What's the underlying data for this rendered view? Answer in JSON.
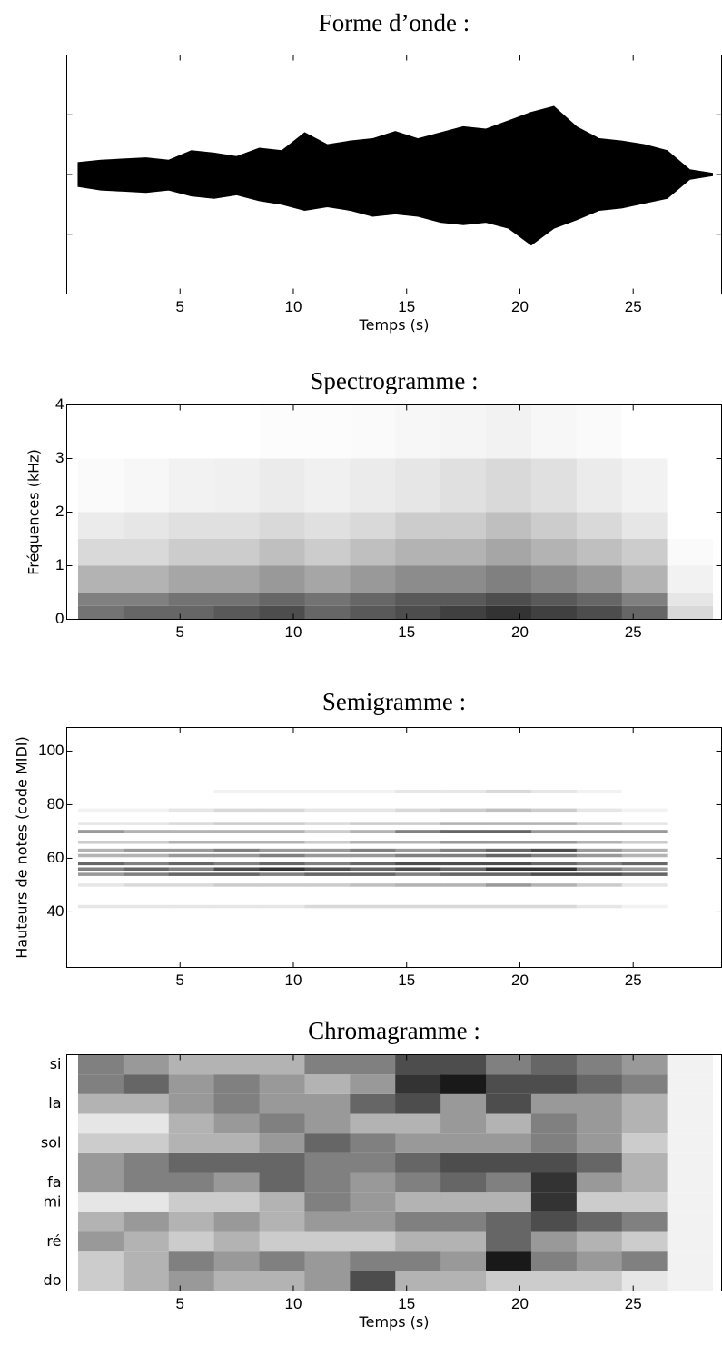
{
  "chart_data": [
    {
      "type": "area",
      "title": "Forme d’onde :",
      "x_label": "Temps (s)",
      "color": "#000000",
      "x": [
        0.5,
        1.5,
        2.5,
        3.5,
        4.5,
        5.5,
        6.5,
        7.5,
        8.5,
        9.5,
        10.5,
        11.5,
        12.5,
        13.5,
        14.5,
        15.5,
        16.5,
        17.5,
        18.5,
        19.5,
        20.5,
        21.5,
        22.5,
        23.5,
        24.5,
        25.5,
        26.5,
        27.5,
        28.5
      ],
      "upper": [
        0.1,
        0.12,
        0.13,
        0.14,
        0.12,
        0.2,
        0.18,
        0.15,
        0.22,
        0.2,
        0.35,
        0.25,
        0.28,
        0.3,
        0.36,
        0.3,
        0.35,
        0.4,
        0.38,
        0.45,
        0.52,
        0.57,
        0.4,
        0.3,
        0.28,
        0.25,
        0.2,
        0.04,
        0.01
      ],
      "lower": [
        -0.1,
        -0.13,
        -0.14,
        -0.15,
        -0.13,
        -0.18,
        -0.2,
        -0.17,
        -0.22,
        -0.25,
        -0.3,
        -0.27,
        -0.3,
        -0.35,
        -0.33,
        -0.35,
        -0.4,
        -0.42,
        -0.4,
        -0.45,
        -0.59,
        -0.45,
        -0.38,
        -0.3,
        -0.28,
        -0.24,
        -0.2,
        -0.04,
        -0.01
      ],
      "xlim": [
        0,
        28.9
      ],
      "xticks": [
        5,
        10,
        15,
        20,
        25
      ],
      "ylim": [
        -1,
        1
      ],
      "yticks": [
        -0.5,
        0,
        0.5
      ],
      "ytick_labels": false
    },
    {
      "type": "heatmap",
      "title": "Spectrogramme :",
      "y_label": "Fréquences (kHz)",
      "colormap": "gray_r",
      "x_bins": [
        0.5,
        2.5,
        4.5,
        6.5,
        8.5,
        10.5,
        12.5,
        14.5,
        16.5,
        18.5,
        20.5,
        22.5,
        24.5,
        26.5,
        28.5
      ],
      "y_bins": [
        0,
        0.25,
        0.5,
        1,
        1.5,
        2,
        3,
        4
      ],
      "z": [
        [
          0.55,
          0.6,
          0.6,
          0.65,
          0.7,
          0.6,
          0.65,
          0.7,
          0.75,
          0.8,
          0.75,
          0.7,
          0.6,
          0.15
        ],
        [
          0.5,
          0.5,
          0.55,
          0.55,
          0.6,
          0.55,
          0.6,
          0.65,
          0.65,
          0.7,
          0.65,
          0.6,
          0.5,
          0.1
        ],
        [
          0.3,
          0.3,
          0.35,
          0.35,
          0.4,
          0.35,
          0.4,
          0.45,
          0.45,
          0.5,
          0.45,
          0.4,
          0.3,
          0.05
        ],
        [
          0.15,
          0.15,
          0.2,
          0.2,
          0.25,
          0.2,
          0.25,
          0.3,
          0.3,
          0.35,
          0.3,
          0.25,
          0.2,
          0.02
        ],
        [
          0.08,
          0.1,
          0.12,
          0.12,
          0.15,
          0.12,
          0.15,
          0.2,
          0.2,
          0.25,
          0.2,
          0.15,
          0.1,
          0
        ],
        [
          0.02,
          0.03,
          0.05,
          0.06,
          0.08,
          0.06,
          0.08,
          0.1,
          0.12,
          0.15,
          0.12,
          0.08,
          0.05,
          0
        ],
        [
          0,
          0,
          0,
          0,
          0.01,
          0.01,
          0.02,
          0.03,
          0.04,
          0.05,
          0.03,
          0.02,
          0,
          0
        ]
      ],
      "xlim": [
        0,
        28.9
      ],
      "xticks": [
        5,
        10,
        15,
        20,
        25
      ],
      "ylim": [
        0,
        4
      ],
      "yticks": [
        0,
        1,
        2,
        3,
        4
      ]
    },
    {
      "type": "heatmap",
      "title": "Semigramme :",
      "y_label": "Hauteurs de notes (code MIDI)",
      "colormap": "gray_r",
      "x_bins": [
        0.5,
        2.5,
        4.5,
        6.5,
        8.5,
        10.5,
        12.5,
        14.5,
        16.5,
        18.5,
        20.5,
        22.5,
        24.5,
        26.5,
        28.5
      ],
      "pitches": [
        42,
        50,
        54,
        56,
        58,
        61,
        63,
        66,
        70,
        73,
        78,
        85
      ],
      "z": [
        [
          0.1,
          0.1,
          0.1,
          0.1,
          0.1,
          0.15,
          0.15,
          0.15,
          0.15,
          0.15,
          0.15,
          0.1,
          0.05,
          0
        ],
        [
          0.1,
          0.15,
          0.15,
          0.2,
          0.2,
          0.2,
          0.25,
          0.3,
          0.3,
          0.4,
          0.3,
          0.2,
          0.1,
          0
        ],
        [
          0.4,
          0.5,
          0.6,
          0.6,
          0.5,
          0.6,
          0.6,
          0.5,
          0.6,
          0.6,
          0.7,
          0.7,
          0.6,
          0
        ],
        [
          0.5,
          0.6,
          0.5,
          0.7,
          0.8,
          0.7,
          0.6,
          0.7,
          0.6,
          0.8,
          0.8,
          0.5,
          0.4,
          0
        ],
        [
          0.6,
          0.5,
          0.6,
          0.5,
          0.6,
          0.5,
          0.6,
          0.7,
          0.7,
          0.7,
          0.6,
          0.5,
          0.6,
          0
        ],
        [
          0.3,
          0.3,
          0.4,
          0.4,
          0.5,
          0.4,
          0.4,
          0.5,
          0.5,
          0.6,
          0.5,
          0.4,
          0.3,
          0
        ],
        [
          0.3,
          0.4,
          0.4,
          0.5,
          0.4,
          0.4,
          0.5,
          0.4,
          0.5,
          0.6,
          0.7,
          0.4,
          0.3,
          0
        ],
        [
          0.2,
          0.2,
          0.3,
          0.3,
          0.3,
          0.2,
          0.3,
          0.3,
          0.4,
          0.4,
          0.4,
          0.3,
          0.2,
          0
        ],
        [
          0.4,
          0.3,
          0.3,
          0.3,
          0.3,
          0.2,
          0.3,
          0.5,
          0.6,
          0.6,
          0.4,
          0.4,
          0.4,
          0
        ],
        [
          0.1,
          0.1,
          0.15,
          0.2,
          0.2,
          0.15,
          0.2,
          0.2,
          0.3,
          0.3,
          0.3,
          0.2,
          0.1,
          0
        ],
        [
          0.05,
          0.05,
          0.1,
          0.15,
          0.15,
          0.1,
          0.1,
          0.15,
          0.2,
          0.25,
          0.2,
          0.1,
          0.05,
          0
        ],
        [
          0,
          0,
          0,
          0.05,
          0.05,
          0.05,
          0.05,
          0.1,
          0.1,
          0.15,
          0.1,
          0.05,
          0,
          0
        ]
      ],
      "xlim": [
        0,
        28.9
      ],
      "xticks": [
        5,
        10,
        15,
        20,
        25
      ],
      "ylim": [
        19.3,
        108.8
      ],
      "yticks": [
        40,
        60,
        80,
        100
      ]
    },
    {
      "type": "heatmap",
      "title": "Chromagramme :",
      "x_label": "Temps (s)",
      "colormap": "gray_r",
      "x_bins": [
        0.5,
        2.5,
        4.5,
        6.5,
        8.5,
        10.5,
        12.5,
        14.5,
        16.5,
        18.5,
        20.5,
        22.5,
        24.5,
        26.5,
        28.5
      ],
      "categories": [
        "do",
        null,
        "ré",
        null,
        "mi",
        "fa",
        null,
        "sol",
        null,
        "la",
        null,
        "si"
      ],
      "z": [
        [
          0.2,
          0.3,
          0.4,
          0.3,
          0.3,
          0.4,
          0.7,
          0.3,
          0.3,
          0.2,
          0.2,
          0.2,
          0.1,
          0.05
        ],
        [
          0.2,
          0.3,
          0.5,
          0.4,
          0.5,
          0.4,
          0.5,
          0.5,
          0.4,
          0.9,
          0.5,
          0.4,
          0.5,
          0.05
        ],
        [
          0.4,
          0.3,
          0.2,
          0.3,
          0.2,
          0.2,
          0.2,
          0.3,
          0.3,
          0.6,
          0.4,
          0.3,
          0.2,
          0.05
        ],
        [
          0.3,
          0.4,
          0.3,
          0.4,
          0.3,
          0.4,
          0.4,
          0.5,
          0.5,
          0.6,
          0.7,
          0.6,
          0.5,
          0.05
        ],
        [
          0.1,
          0.1,
          0.2,
          0.2,
          0.3,
          0.5,
          0.4,
          0.3,
          0.3,
          0.3,
          0.8,
          0.2,
          0.2,
          0.05
        ],
        [
          0.4,
          0.5,
          0.5,
          0.4,
          0.6,
          0.5,
          0.4,
          0.5,
          0.6,
          0.5,
          0.8,
          0.4,
          0.3,
          0.05
        ],
        [
          0.4,
          0.5,
          0.6,
          0.6,
          0.6,
          0.5,
          0.5,
          0.6,
          0.7,
          0.7,
          0.7,
          0.6,
          0.3,
          0.05
        ],
        [
          0.2,
          0.2,
          0.3,
          0.3,
          0.4,
          0.6,
          0.5,
          0.4,
          0.4,
          0.4,
          0.5,
          0.4,
          0.2,
          0.05
        ],
        [
          0.1,
          0.1,
          0.3,
          0.4,
          0.5,
          0.4,
          0.3,
          0.3,
          0.4,
          0.3,
          0.5,
          0.4,
          0.3,
          0.05
        ],
        [
          0.3,
          0.3,
          0.4,
          0.5,
          0.4,
          0.4,
          0.6,
          0.7,
          0.4,
          0.7,
          0.4,
          0.4,
          0.3,
          0.05
        ],
        [
          0.5,
          0.6,
          0.4,
          0.5,
          0.4,
          0.3,
          0.4,
          0.8,
          0.9,
          0.7,
          0.7,
          0.6,
          0.5,
          0.05
        ],
        [
          0.5,
          0.4,
          0.3,
          0.3,
          0.3,
          0.5,
          0.5,
          0.7,
          0.7,
          0.5,
          0.6,
          0.5,
          0.4,
          0.05
        ]
      ],
      "xlim": [
        0,
        28.9
      ],
      "xticks": [
        5,
        10,
        15,
        20,
        25
      ]
    }
  ]
}
